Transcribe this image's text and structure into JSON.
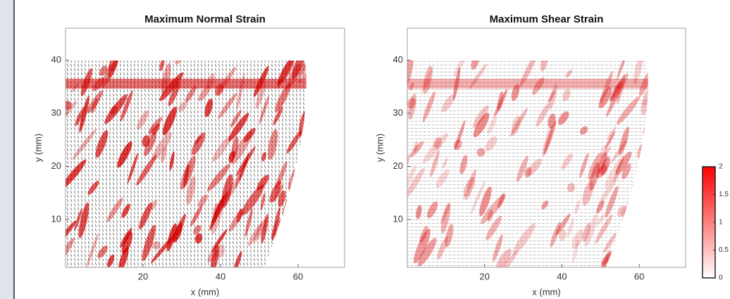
{
  "chart_data": [
    {
      "type": "heatmap",
      "title": "Maximum Normal Strain",
      "x_label": "x (mm)",
      "y_label": "y (mm)",
      "xlim": [
        0,
        72
      ],
      "xticks": [
        20,
        40,
        60
      ],
      "ylim": [
        1,
        46
      ],
      "yticks": [
        10,
        20,
        30,
        40
      ],
      "intensity": 0.8
    },
    {
      "type": "heatmap",
      "title": "Maximum Shear Strain",
      "x_label": "x (mm)",
      "y_label": "y (mm)",
      "xlim": [
        0,
        72
      ],
      "xticks": [
        20,
        40,
        60
      ],
      "ylim": [
        1,
        46
      ],
      "yticks": [
        10,
        20,
        30,
        40
      ],
      "intensity": 0.45
    }
  ],
  "colorbar": {
    "ylim": [
      0,
      2
    ],
    "yticks": [
      0,
      0.5,
      1,
      1.5,
      2
    ],
    "colors": [
      "#ffffff",
      "#ff0000"
    ]
  }
}
